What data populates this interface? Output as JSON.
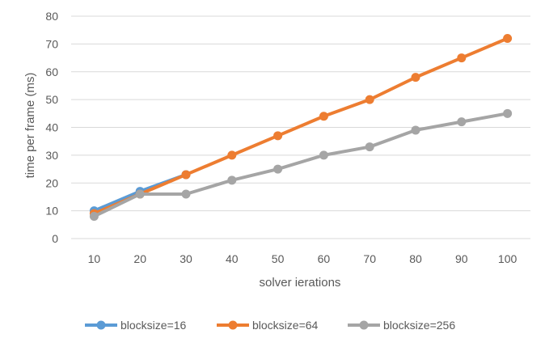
{
  "chart_data": {
    "type": "line",
    "title": "",
    "xlabel": "solver ierations",
    "ylabel": "time per frame (ms)",
    "categories": [
      "10",
      "20",
      "30",
      "40",
      "50",
      "60",
      "70",
      "80",
      "90",
      "100"
    ],
    "ylim": [
      0,
      80
    ],
    "yticks": [
      "0",
      "10",
      "20",
      "30",
      "40",
      "50",
      "60",
      "70",
      "80"
    ],
    "grid": true,
    "legend_position": "bottom",
    "series": [
      {
        "name": "blocksize=16",
        "color": "#5b9bd5",
        "values": [
          10,
          17,
          23,
          null,
          null,
          null,
          null,
          null,
          null,
          null
        ]
      },
      {
        "name": "blocksize=64",
        "color": "#ed7d31",
        "values": [
          9,
          16,
          23,
          30,
          37,
          44,
          50,
          58,
          65,
          72
        ]
      },
      {
        "name": "blocksize=256",
        "color": "#a5a5a5",
        "values": [
          8,
          16,
          16,
          21,
          25,
          30,
          33,
          39,
          42,
          45
        ]
      }
    ]
  }
}
